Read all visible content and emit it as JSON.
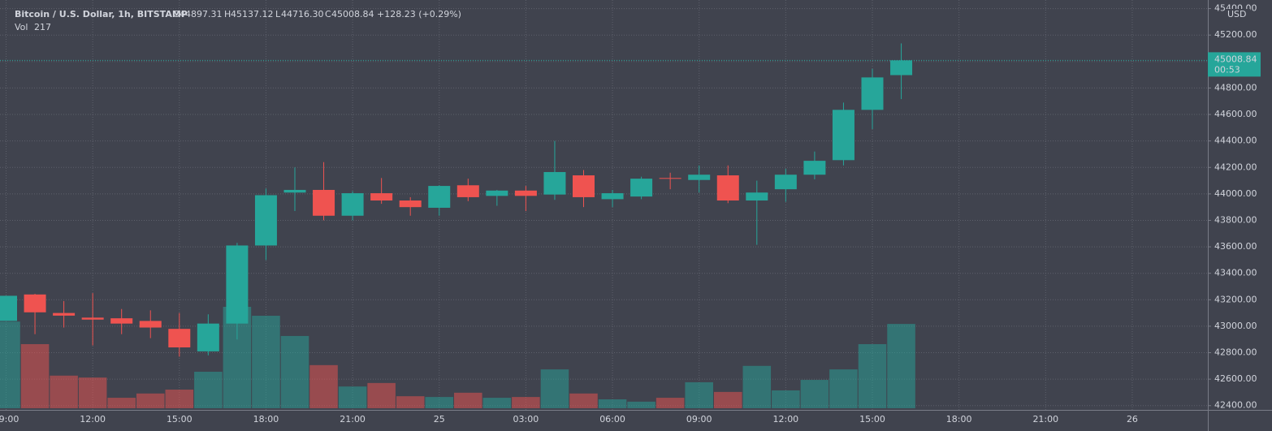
{
  "chart_data": {
    "type": "candlestick",
    "legend": {
      "symbol": "Bitcoin / U.S. Dollar, 1h, BITSTAMP",
      "o_label": "O",
      "o": "44897.31",
      "h_label": "H",
      "h": "45137.12",
      "l_label": "L",
      "l": "44716.30",
      "c_label": "C",
      "c": "45008.84",
      "change": "+128.23 (+0.29%)",
      "vol_label": "Vol",
      "vol": "217"
    },
    "currency": "USD",
    "price_tag": "45008.84",
    "countdown": "00:53",
    "categories": [
      "09:00",
      null,
      null,
      "12:00",
      null,
      null,
      "15:00",
      null,
      null,
      "18:00",
      null,
      null,
      "21:00",
      null,
      null,
      "25",
      null,
      null,
      "03:00",
      null,
      null,
      "06:00",
      null,
      null,
      "09:00",
      null,
      null,
      "12:00",
      null,
      null,
      "15:00",
      null,
      null,
      "18:00",
      null,
      null,
      "21:00",
      null,
      null,
      "26",
      null,
      null
    ],
    "open": [
      43040,
      43240,
      43100,
      43065,
      43060,
      43040,
      42980,
      42810,
      43020,
      43610,
      44010,
      44030,
      43835,
      44005,
      43950,
      43895,
      44065,
      43985,
      44025,
      43995,
      44140,
      43960,
      43980,
      44120,
      44105,
      44140,
      43950,
      44035,
      44145,
      44255,
      44635,
      44897.31,
      null,
      null,
      null,
      null,
      null,
      null,
      null,
      null,
      null,
      null
    ],
    "high": [
      43230,
      43245,
      43190,
      43250,
      43130,
      43120,
      43100,
      43090,
      43630,
      44040,
      44200,
      44240,
      44020,
      44120,
      43975,
      44065,
      44115,
      44030,
      44060,
      44400,
      44180,
      44030,
      44130,
      44160,
      44215,
      44215,
      44100,
      44190,
      44320,
      44690,
      44945,
      45137.12,
      null,
      null,
      null,
      null,
      null,
      null,
      null,
      null,
      null,
      null
    ],
    "low": [
      43040,
      42940,
      42990,
      42855,
      42940,
      42910,
      42770,
      42780,
      42900,
      43500,
      43870,
      43800,
      43800,
      43925,
      43835,
      43835,
      43945,
      43910,
      43870,
      43955,
      43900,
      43900,
      43960,
      44035,
      44010,
      43930,
      43615,
      43940,
      44110,
      44215,
      44490,
      44716.3,
      null,
      null,
      null,
      null,
      null,
      null,
      null,
      null,
      null,
      null
    ],
    "close": [
      43230,
      43105,
      43080,
      43050,
      43020,
      42990,
      42840,
      43020,
      43610,
      43990,
      44030,
      43835,
      44005,
      43950,
      43900,
      44060,
      43975,
      44025,
      43985,
      44165,
      43975,
      44005,
      44115,
      44115,
      44145,
      43950,
      44010,
      44145,
      44250,
      44635,
      44880,
      45008.84,
      null,
      null,
      null,
      null,
      null,
      null,
      null,
      null,
      null,
      null
    ],
    "volume": [
      223,
      165,
      84,
      79,
      27,
      38,
      48,
      94,
      261,
      238,
      186,
      111,
      56,
      65,
      31,
      29,
      40,
      27,
      29,
      100,
      38,
      23,
      17,
      27,
      67,
      42,
      109,
      46,
      73,
      100,
      165,
      217,
      null,
      null,
      null,
      null,
      null,
      null,
      null,
      null,
      null,
      null
    ],
    "up_color": "#26a69a",
    "down_color": "#ef5350",
    "ylim": [
      42380,
      45465
    ],
    "yticks": [
      {
        "value": 42400,
        "label": "42400.00"
      },
      {
        "value": 42600,
        "label": "42600.00"
      },
      {
        "value": 42800,
        "label": "42800.00"
      },
      {
        "value": 43000,
        "label": "43000.00"
      },
      {
        "value": 43200,
        "label": "43200.00"
      },
      {
        "value": 43400,
        "label": "43400.00"
      },
      {
        "value": 43600,
        "label": "43600.00"
      },
      {
        "value": 43800,
        "label": "43800.00"
      },
      {
        "value": 44000,
        "label": "44000.00"
      },
      {
        "value": 44200,
        "label": "44200.00"
      },
      {
        "value": 44400,
        "label": "44400.00"
      },
      {
        "value": 44600,
        "label": "44600.00"
      },
      {
        "value": 44800,
        "label": "44800.00"
      },
      {
        "value": 45000,
        "label": "45000.00"
      },
      {
        "value": 45200,
        "label": "45200.00"
      },
      {
        "value": 45400,
        "label": "45400.00"
      }
    ],
    "grid": true
  }
}
